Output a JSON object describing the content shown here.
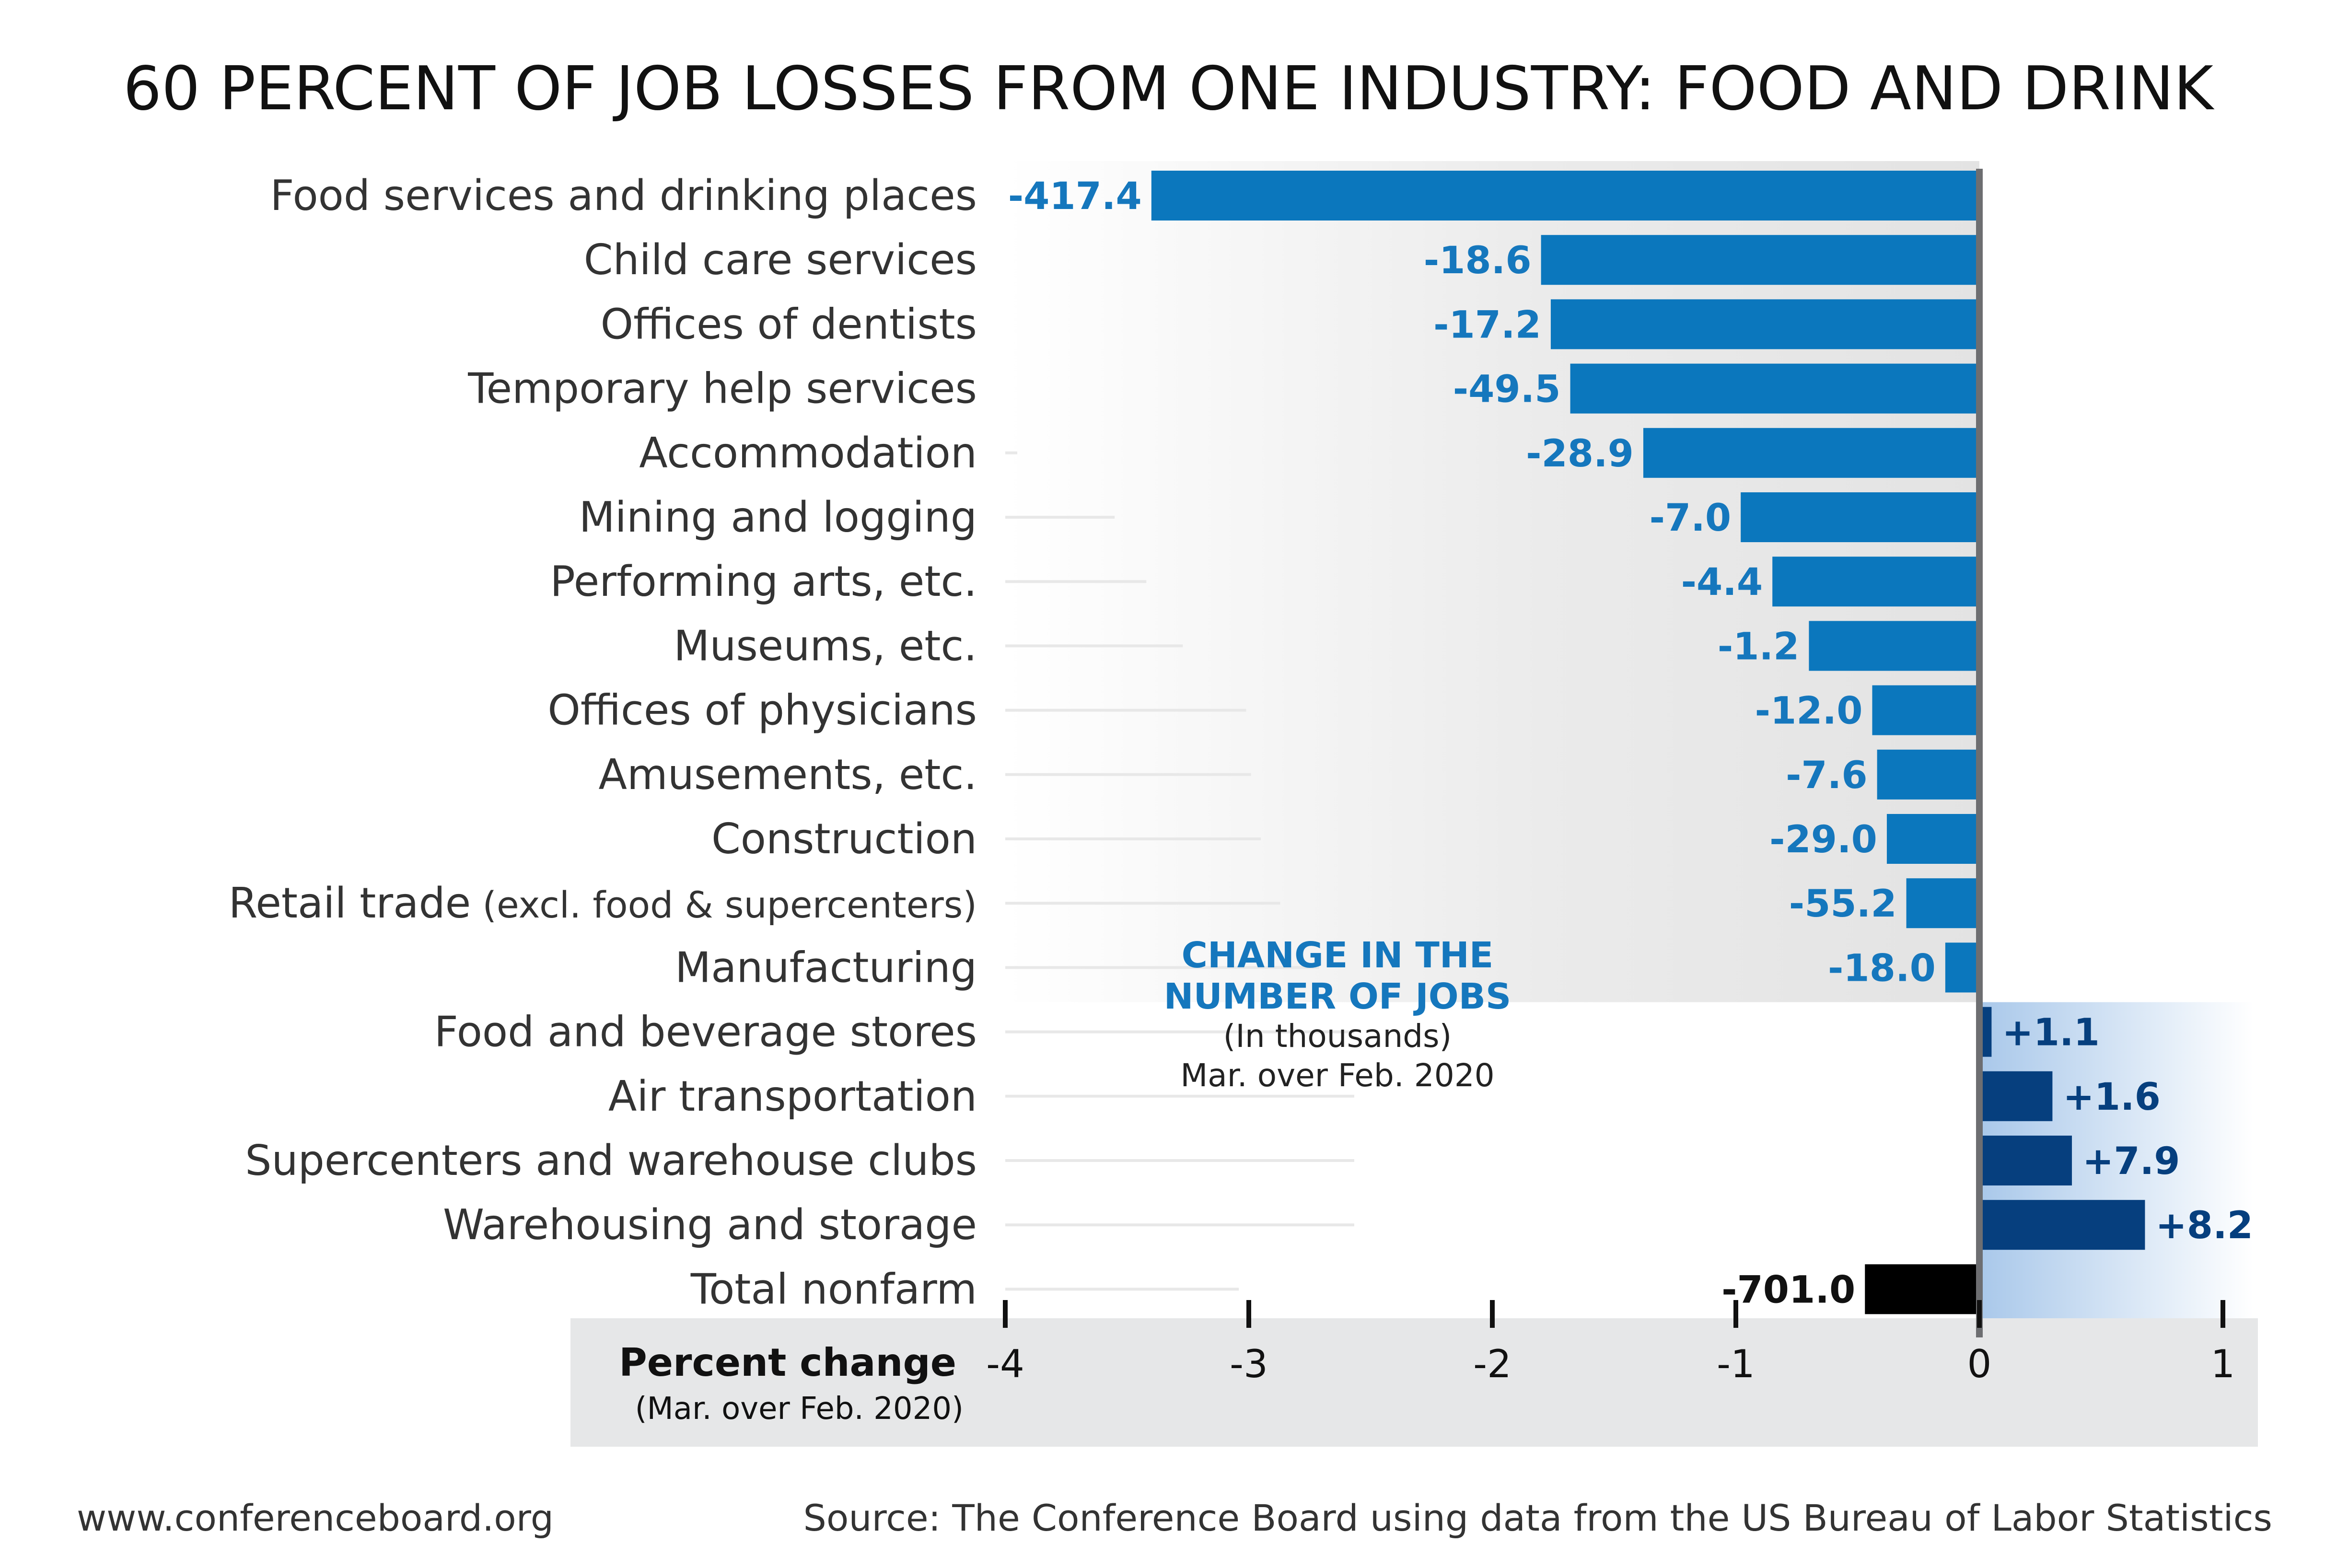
{
  "title": "60 PERCENT OF JOB LOSSES FROM ONE INDUSTRY: FOOD AND DRINK",
  "annotation": {
    "line1": "CHANGE IN THE",
    "line2": "NUMBER OF JOBS",
    "line3": "(In thousands)",
    "line4": "Mar. over Feb. 2020"
  },
  "footer": {
    "left": "www.conferenceboard.org",
    "right": "Source: The Conference Board using data from the US Bureau of Labor Statistics"
  },
  "colors": {
    "negative": "#0b77bd",
    "positive": "#063f7e",
    "total": "#000000",
    "negative_label": "#1577bd",
    "positive_label": "#063f7e",
    "axis_band": "#e6e7e8",
    "zero_line": "#6d6e71"
  },
  "chart_data": {
    "type": "bar",
    "orientation": "horizontal",
    "xlabel": "Percent change",
    "xlabel_sub": "(Mar. over Feb. 2020)",
    "xlim": [
      -4,
      1
    ],
    "xticks": [
      -4,
      -3,
      -2,
      -1,
      0,
      1
    ],
    "xtick_labels": [
      "-4",
      "-3",
      "-2",
      "-1",
      "0",
      "1"
    ],
    "categories": [
      {
        "name": "Food services and drinking places",
        "qualifier": ""
      },
      {
        "name": "Child care services",
        "qualifier": ""
      },
      {
        "name": "Offices of dentists",
        "qualifier": ""
      },
      {
        "name": "Temporary help services",
        "qualifier": ""
      },
      {
        "name": "Accommodation",
        "qualifier": ""
      },
      {
        "name": "Mining and logging",
        "qualifier": ""
      },
      {
        "name": "Performing arts, etc.",
        "qualifier": ""
      },
      {
        "name": "Museums, etc.",
        "qualifier": ""
      },
      {
        "name": "Offices of physicians",
        "qualifier": ""
      },
      {
        "name": "Amusements, etc.",
        "qualifier": ""
      },
      {
        "name": "Construction",
        "qualifier": ""
      },
      {
        "name": "Retail trade",
        "qualifier": "(excl. food & supercenters)"
      },
      {
        "name": "Manufacturing",
        "qualifier": ""
      },
      {
        "name": "Food and beverage stores",
        "qualifier": ""
      },
      {
        "name": "Air transportation",
        "qualifier": ""
      },
      {
        "name": "Supercenters and warehouse clubs",
        "qualifier": ""
      },
      {
        "name": "Warehousing and storage",
        "qualifier": ""
      },
      {
        "name": "Total nonfarm",
        "qualifier": ""
      }
    ],
    "percent_change": [
      -3.4,
      -1.8,
      -1.76,
      -1.68,
      -1.38,
      -0.98,
      -0.85,
      -0.7,
      -0.44,
      -0.42,
      -0.38,
      -0.3,
      -0.14,
      0.05,
      0.3,
      0.38,
      0.68,
      -0.47
    ],
    "value_labels": [
      "-417.4",
      "-18.6",
      "-17.2",
      "-49.5",
      "-28.9",
      "-7.0",
      "-4.4",
      "-1.2",
      "-12.0",
      "-7.6",
      "-29.0",
      "-55.2",
      "-18.0",
      "+1.1",
      "+1.6",
      "+7.9",
      "+8.2",
      "-701.0"
    ],
    "grid": false,
    "legend": "none"
  }
}
